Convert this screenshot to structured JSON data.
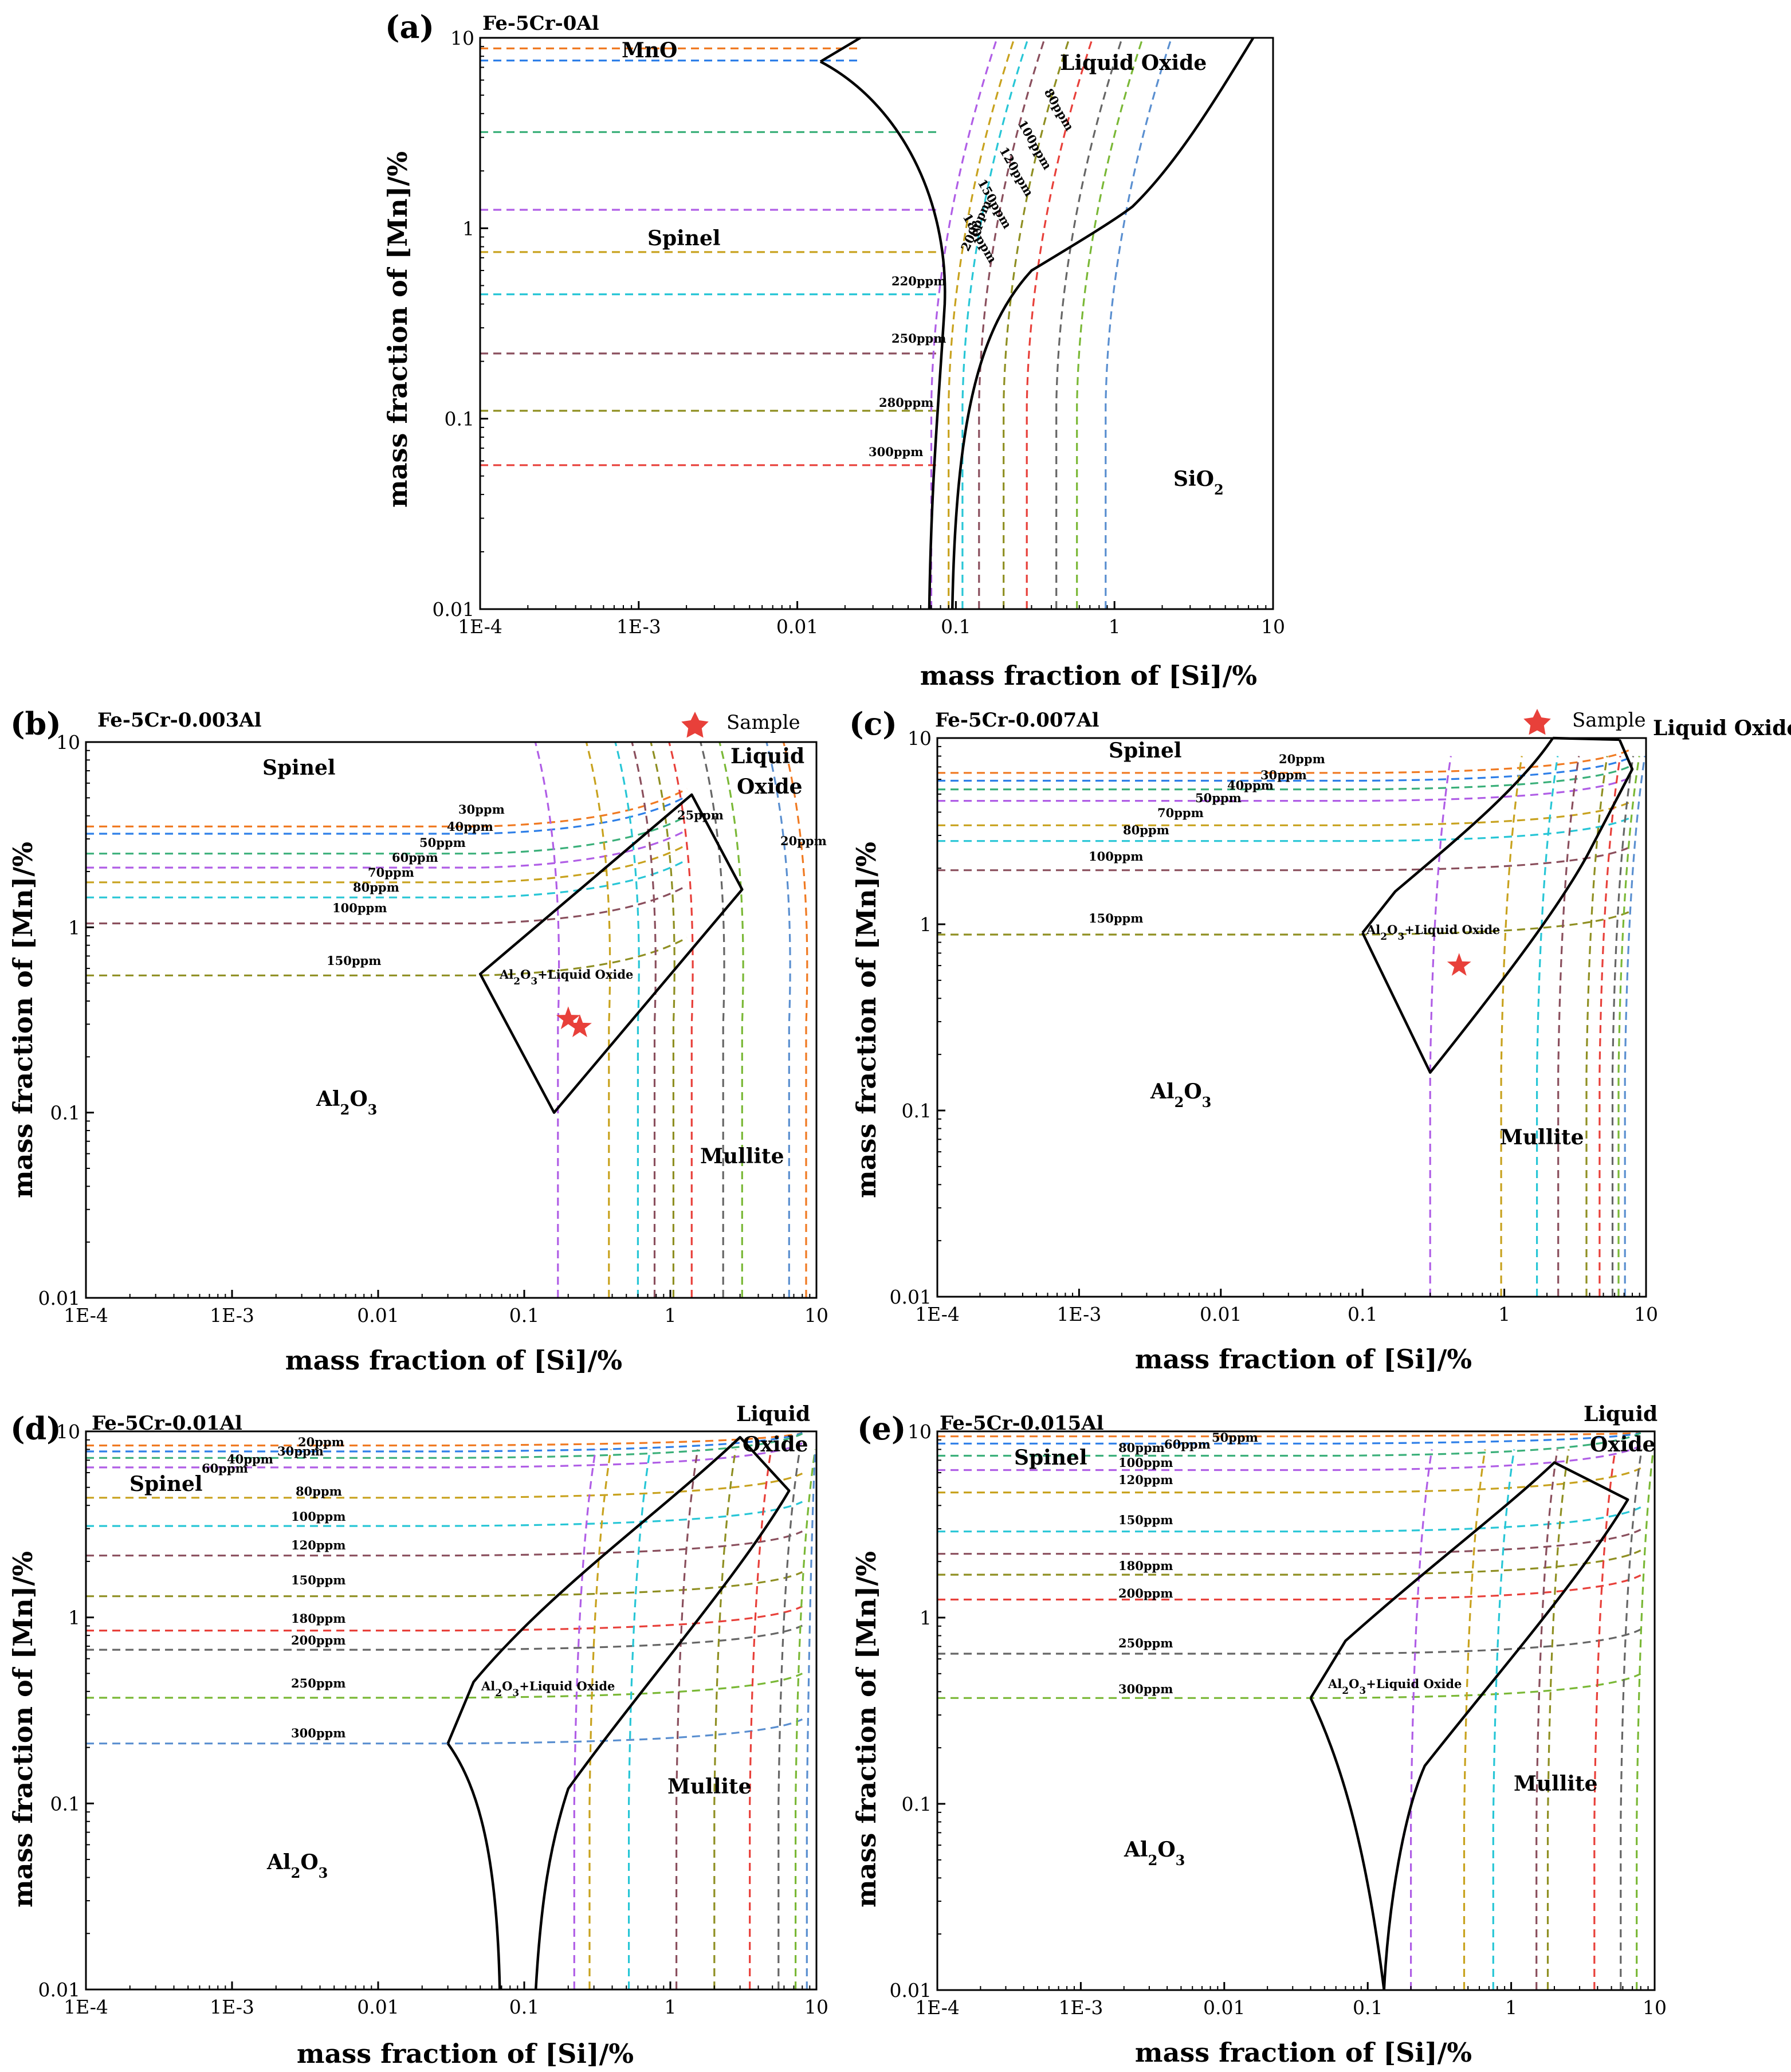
{
  "figure": {
    "colors": {
      "orange": "#f07a22",
      "blue": "#2e7fe8",
      "green": "#3bb07a",
      "purple": "#b05ee6",
      "olive": "#c8a21e",
      "cyan": "#28c6d6",
      "brown": "#8a4f5d",
      "khaki": "#8f8f22",
      "red": "#e8403a",
      "gray": "#666666",
      "lightgreen": "#7ab836",
      "steel": "#5a8fd0",
      "star": "#e8403a",
      "boundary": "#000000"
    }
  },
  "chart_data": [
    {
      "id": "a",
      "type": "line",
      "panel_label": "(a)",
      "title": "Fe-5Cr-0Al",
      "xlabel": "mass fraction of [Si]/%",
      "ylabel": "mass fraction of [Mn]/%",
      "xscale": "log",
      "yscale": "log",
      "xlim": [
        0.0001,
        10
      ],
      "ylim": [
        0.01,
        10
      ],
      "xticks": [
        "1E-4",
        "1E-3",
        "0.01",
        "0.1",
        "1",
        "10"
      ],
      "yticks": [
        "0.01",
        "0.1",
        "1",
        "10"
      ],
      "regions": [
        "MnO",
        "Liquid Oxide",
        "Spinel",
        "SiO2"
      ],
      "oxygen_isolines_ppm": [
        "80ppm",
        "100ppm",
        "120ppm",
        "150ppm",
        "180ppm",
        "200ppm",
        "220ppm",
        "250ppm",
        "280ppm",
        "300ppm"
      ],
      "isoline_mn_levels": [
        8.8,
        7.6,
        3.2,
        1.25,
        0.75,
        0.45,
        0.22,
        0.11,
        0.057
      ],
      "isoline_si_levels": [
        0.07,
        0.09,
        0.11,
        0.14,
        0.2,
        0.28,
        0.43,
        0.58,
        0.88
      ],
      "sample_points": []
    },
    {
      "id": "b",
      "type": "line",
      "panel_label": "(b)",
      "title": "Fe-5Cr-0.003Al",
      "xlabel": "mass fraction of [Si]/%",
      "ylabel": "mass fraction of [Mn]/%",
      "xscale": "log",
      "yscale": "log",
      "xlim": [
        0.0001,
        10
      ],
      "ylim": [
        0.01,
        10
      ],
      "xticks": [
        "1E-4",
        "1E-3",
        "0.01",
        "0.1",
        "1",
        "10"
      ],
      "yticks": [
        "0.01",
        "0.1",
        "1",
        "10"
      ],
      "regions": [
        "Spinel",
        "Liquid",
        "Oxide",
        "Al2O3+Liquid Oxide",
        "Al2O3",
        "Mullite"
      ],
      "oxygen_isolines_ppm": [
        "20ppm",
        "25ppm",
        "30ppm",
        "40ppm",
        "50ppm",
        "60ppm",
        "70ppm",
        "80ppm",
        "100ppm",
        "150ppm"
      ],
      "isoline_mn_levels": [
        3.5,
        3.2,
        2.5,
        2.1,
        1.75,
        1.45,
        1.05,
        0.55
      ],
      "isoline_si_levels": [
        0.17,
        0.38,
        0.6,
        0.78,
        1.05,
        1.4,
        2.3,
        3.1,
        6.5,
        8.5
      ],
      "legend": "Sample",
      "sample_points": [
        {
          "si": 0.2,
          "mn": 0.32
        },
        {
          "si": 0.24,
          "mn": 0.29
        }
      ]
    },
    {
      "id": "c",
      "type": "line",
      "panel_label": "(c)",
      "title": "Fe-5Cr-0.007Al",
      "xlabel": "mass fraction of [Si]/%",
      "ylabel": "mass fraction of [Mn]/%",
      "xscale": "log",
      "yscale": "log",
      "xlim": [
        0.0001,
        10
      ],
      "ylim": [
        0.01,
        10
      ],
      "xticks": [
        "1E-4",
        "1E-3",
        "0.01",
        "0.1",
        "1",
        "10"
      ],
      "yticks": [
        "0.01",
        "0.1",
        "1",
        "10"
      ],
      "regions": [
        "Spinel",
        "Liquid Oxide",
        "Al2O3+Liquid Oxide",
        "Al2O3",
        "Mullite"
      ],
      "oxygen_isolines_ppm": [
        "20ppm",
        "30ppm",
        "40ppm",
        "50ppm",
        "70ppm",
        "80ppm",
        "100ppm",
        "150ppm"
      ],
      "isoline_mn_levels": [
        6.5,
        5.9,
        5.3,
        4.6,
        3.4,
        2.8,
        1.95,
        0.88
      ],
      "isoline_si_levels": [
        0.3,
        0.95,
        1.7,
        2.4,
        3.8,
        4.7,
        5.8,
        6.4,
        7.1
      ],
      "legend": "Sample",
      "sample_points": [
        {
          "si": 0.48,
          "mn": 0.6
        }
      ]
    },
    {
      "id": "d",
      "type": "line",
      "panel_label": "(d)",
      "title": "Fe-5Cr-0.01Al",
      "xlabel": "mass fraction of [Si]/%",
      "ylabel": "mass fraction of [Mn]/%",
      "xscale": "log",
      "yscale": "log",
      "xlim": [
        0.0001,
        10
      ],
      "ylim": [
        0.01,
        10
      ],
      "xticks": [
        "1E-4",
        "1E-3",
        "0.01",
        "0.1",
        "1",
        "10"
      ],
      "yticks": [
        "0.01",
        "0.1",
        "1",
        "10"
      ],
      "regions": [
        "Liquid",
        "Oxide",
        "Spinel",
        "Al2O3+Liquid Oxide",
        "Mullite",
        "Al2O3"
      ],
      "oxygen_isolines_ppm": [
        "20ppm",
        "30ppm",
        "40ppm",
        "60ppm",
        "80ppm",
        "100ppm",
        "120ppm",
        "150ppm",
        "180ppm",
        "200ppm",
        "250ppm",
        "300ppm"
      ],
      "isoline_mn_levels": [
        8.4,
        7.8,
        7.2,
        6.4,
        4.4,
        3.1,
        2.15,
        1.3,
        0.85,
        0.67,
        0.37,
        0.21
      ],
      "isoline_si_levels": [
        0.22,
        0.28,
        0.52,
        1.1,
        2.0,
        3.5,
        5.5,
        7.2,
        8.6
      ],
      "sample_points": []
    },
    {
      "id": "e",
      "type": "line",
      "panel_label": "(e)",
      "title": "Fe-5Cr-0.015Al",
      "xlabel": "mass fraction of [Si]/%",
      "ylabel": "mass fraction of [Mn]/%",
      "xscale": "log",
      "yscale": "log",
      "xlim": [
        0.0001,
        10
      ],
      "ylim": [
        0.01,
        10
      ],
      "xticks": [
        "1E-4",
        "1E-3",
        "0.01",
        "0.1",
        "1",
        "10"
      ],
      "yticks": [
        "0.01",
        "0.1",
        "1",
        "10"
      ],
      "regions": [
        "Liquid",
        "Oxide",
        "Spinel",
        "Al2O3+Liquid Oxide",
        "Mullite",
        "Al2O3"
      ],
      "oxygen_isolines_ppm": [
        "50ppm",
        "60ppm",
        "80ppm",
        "100ppm",
        "120ppm",
        "150ppm",
        "180ppm",
        "200ppm",
        "250ppm",
        "300ppm"
      ],
      "isoline_mn_levels": [
        9.4,
        8.6,
        7.4,
        6.2,
        4.7,
        2.9,
        2.2,
        1.7,
        1.25,
        0.64,
        0.37
      ],
      "isoline_si_levels": [
        0.2,
        0.47,
        0.75,
        1.5,
        1.8,
        3.8,
        5.8,
        7.5
      ],
      "sample_points": []
    }
  ]
}
